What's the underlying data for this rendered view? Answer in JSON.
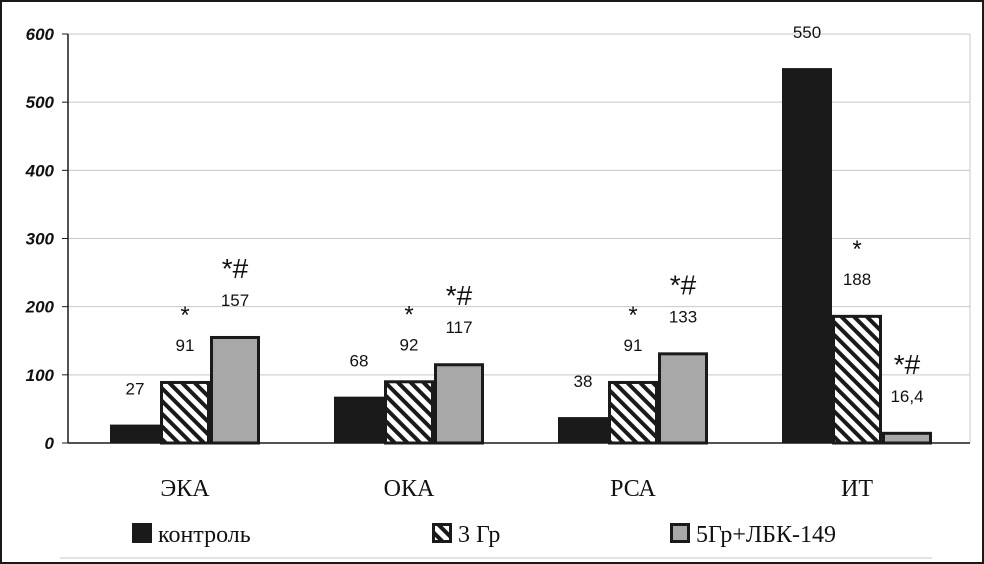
{
  "chart_data": {
    "type": "bar",
    "title": "",
    "xlabel": "",
    "ylabel": "",
    "ylim": [
      0,
      600
    ],
    "yticks": [
      0,
      100,
      200,
      300,
      400,
      500,
      600
    ],
    "grid": true,
    "legend_position": "bottom",
    "categories": [
      "ЭКА",
      "ОКА",
      "РСА",
      "ИТ"
    ],
    "series": [
      {
        "name": "контроль",
        "style": "solid-dark",
        "values": [
          27,
          68,
          38,
          550
        ],
        "labels": [
          "27",
          "68",
          "38",
          "550"
        ],
        "marks": [
          "",
          "",
          "",
          ""
        ]
      },
      {
        "name": "3 Гр",
        "style": "hatched",
        "values": [
          91,
          92,
          91,
          188
        ],
        "labels": [
          "91",
          "92",
          "91",
          "188"
        ],
        "marks": [
          "*",
          "*",
          "*",
          "*"
        ]
      },
      {
        "name": "5Гр+ЛБК-149",
        "style": "solid-gray",
        "values": [
          157,
          117,
          133,
          16.4
        ],
        "labels": [
          "157",
          "117",
          "133",
          "16,4"
        ],
        "marks": [
          "*#",
          "*#",
          "*#",
          "*#"
        ]
      }
    ]
  },
  "colors": {
    "series_dark": "#1a1a1a",
    "series_gray": "#a8a8a8",
    "hatch": "#1a1a1a",
    "grid": "#c8c8c8",
    "axis": "#1a1a1a"
  }
}
